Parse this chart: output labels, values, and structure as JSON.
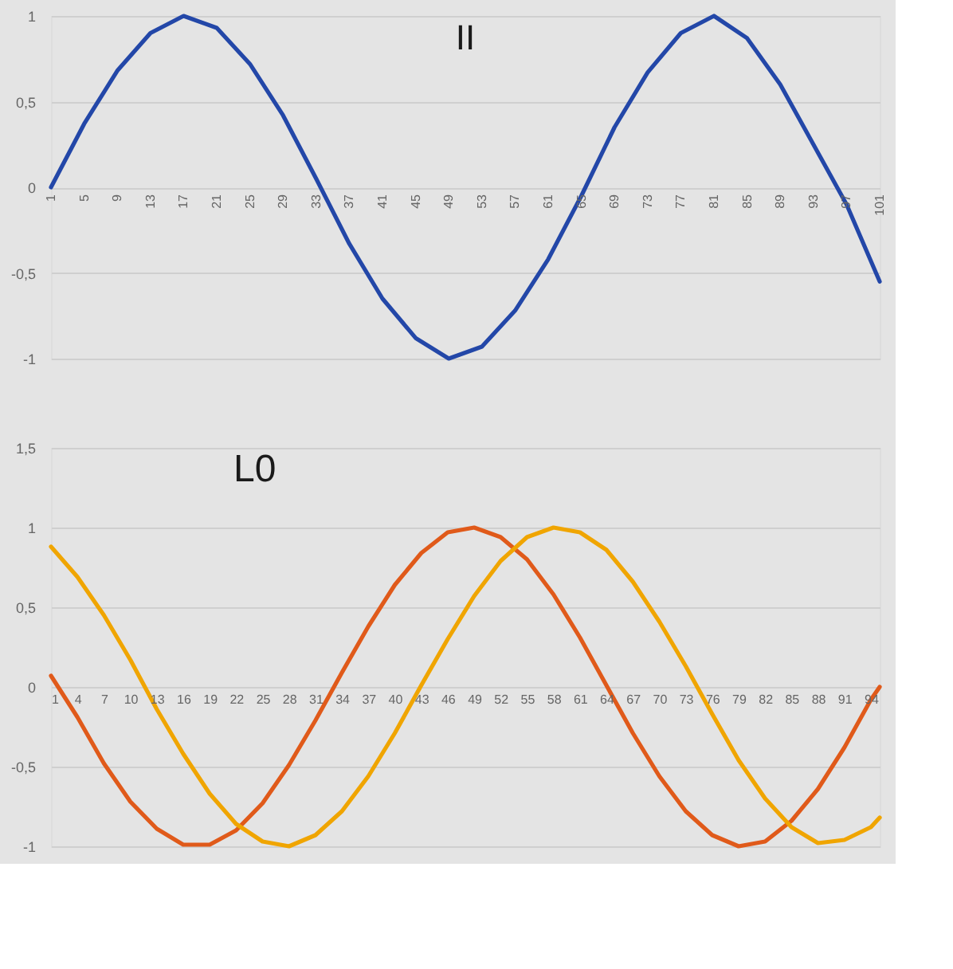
{
  "chart_data": [
    {
      "type": "line",
      "title": "II",
      "xlim": [
        1,
        101
      ],
      "xticks": [
        1,
        5,
        9,
        13,
        17,
        21,
        25,
        29,
        33,
        37,
        41,
        45,
        49,
        53,
        57,
        61,
        65,
        69,
        73,
        77,
        81,
        85,
        89,
        93,
        97,
        101
      ],
      "ylim": [
        -1,
        1
      ],
      "yticks": [
        -1,
        {
          "value": -0.5,
          "label": "-0,5"
        },
        0,
        {
          "value": 0.5,
          "label": "0,5"
        },
        1
      ],
      "grid": "y",
      "legend": false,
      "x": [
        1,
        5,
        9,
        13,
        17,
        21,
        25,
        29,
        33,
        37,
        41,
        45,
        49,
        53,
        57,
        61,
        65,
        69,
        73,
        77,
        81,
        85,
        89,
        93,
        97,
        101
      ],
      "series": [
        {
          "color": "#2347a8",
          "values": [
            0,
            0.37,
            0.68,
            0.9,
            1.0,
            0.93,
            0.72,
            0.42,
            0.05,
            -0.33,
            -0.65,
            -0.88,
            -1.0,
            -0.93,
            -0.72,
            -0.42,
            -0.05,
            0.35,
            0.67,
            0.9,
            1.0,
            0.87,
            0.6,
            0.25,
            -0.1,
            -0.55
          ]
        }
      ]
    },
    {
      "type": "line",
      "title": "L0",
      "xlim": [
        1,
        95
      ],
      "xticks": [
        1,
        4,
        7,
        10,
        13,
        16,
        19,
        22,
        25,
        28,
        31,
        34,
        37,
        40,
        43,
        46,
        49,
        52,
        55,
        58,
        61,
        64,
        67,
        70,
        73,
        76,
        79,
        82,
        85,
        88,
        91,
        94
      ],
      "ylim": [
        -1,
        1.5
      ],
      "yticks": [
        -1,
        {
          "value": -0.5,
          "label": "-0,5"
        },
        0,
        {
          "value": 0.5,
          "label": "0,5"
        },
        1,
        {
          "value": 1.5,
          "label": "1,5"
        }
      ],
      "grid": "y",
      "legend": false,
      "x": [
        1,
        4,
        7,
        10,
        13,
        16,
        19,
        22,
        25,
        28,
        31,
        34,
        37,
        40,
        43,
        46,
        49,
        52,
        55,
        58,
        61,
        64,
        67,
        70,
        73,
        76,
        79,
        82,
        85,
        88,
        91,
        94,
        95
      ],
      "series": [
        {
          "color": "#e05a1a",
          "values": [
            0.07,
            -0.19,
            -0.48,
            -0.72,
            -0.89,
            -0.99,
            -0.99,
            -0.9,
            -0.73,
            -0.49,
            -0.21,
            0.09,
            0.38,
            0.64,
            0.84,
            0.97,
            1.0,
            0.94,
            0.8,
            0.58,
            0.31,
            0.01,
            -0.29,
            -0.56,
            -0.78,
            -0.93,
            -1.0,
            -0.97,
            -0.84,
            -0.64,
            -0.38,
            -0.08,
            0.0
          ]
        },
        {
          "color": "#f0a500",
          "values": [
            0.88,
            0.69,
            0.45,
            0.17,
            -0.14,
            -0.42,
            -0.67,
            -0.86,
            -0.97,
            -1.0,
            -0.93,
            -0.78,
            -0.56,
            -0.29,
            0.01,
            0.3,
            0.57,
            0.79,
            0.94,
            1.0,
            0.97,
            0.86,
            0.66,
            0.41,
            0.13,
            -0.17,
            -0.46,
            -0.7,
            -0.88,
            -0.98,
            -0.96,
            -0.88,
            -0.82
          ]
        }
      ]
    }
  ]
}
